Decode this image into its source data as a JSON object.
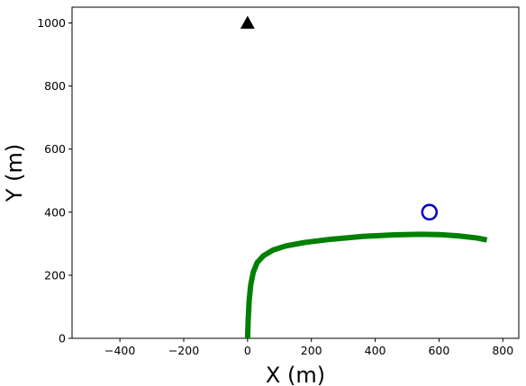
{
  "chart_data": {
    "type": "line",
    "title": "",
    "xlabel": "X (m)",
    "ylabel": "Y (m)",
    "xlim": [
      -550,
      850
    ],
    "ylim": [
      0,
      1050
    ],
    "grid": false,
    "x_ticks": [
      -400,
      -200,
      0,
      200,
      400,
      600,
      800
    ],
    "y_ticks": [
      0,
      200,
      400,
      600,
      800,
      1000
    ],
    "x_tick_labels": [
      "−400",
      "−200",
      "0",
      "200",
      "400",
      "600",
      "800"
    ],
    "y_tick_labels": [
      "0",
      "200",
      "400",
      "600",
      "800",
      "1000"
    ],
    "series": [
      {
        "color": "#008000",
        "x": [
          0,
          2,
          5,
          10,
          18,
          30,
          50,
          80,
          120,
          180,
          260,
          360,
          460,
          540,
          600,
          660,
          720,
          750
        ],
        "y": [
          0,
          60,
          120,
          170,
          210,
          240,
          262,
          280,
          293,
          304,
          314,
          323,
          328,
          330,
          329,
          325,
          318,
          312
        ]
      }
    ],
    "markers": [
      {
        "shape": "triangle",
        "x": 0,
        "y": 1000,
        "color": "#000000"
      },
      {
        "shape": "circle",
        "x": 570,
        "y": 400,
        "color": "#0000cc"
      }
    ]
  }
}
